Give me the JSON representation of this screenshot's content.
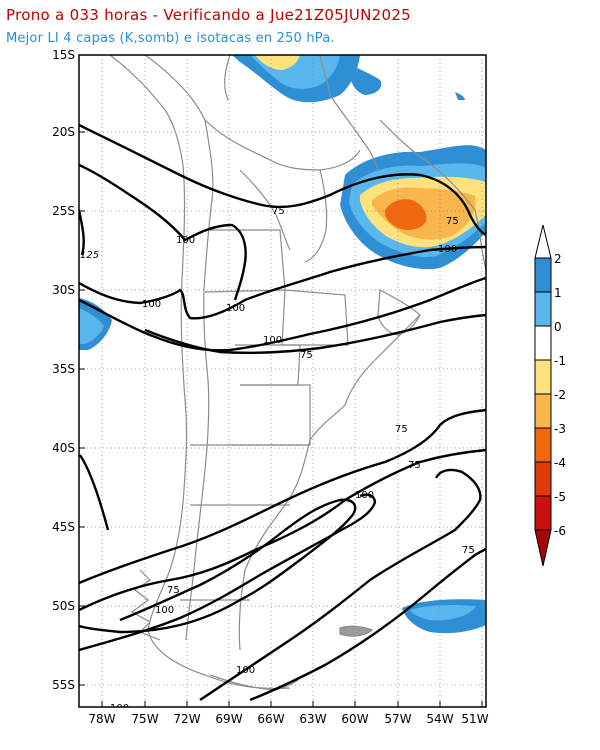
{
  "title": {
    "line1": "Prono a 033 horas - Verificando a Jue21Z05JUN2025",
    "line2": "Mejor LI 4 capas (K,somb) e isotacas en 250 hPa.",
    "line1_color": "#c00000",
    "line2_color": "#2a8fd6"
  },
  "map": {
    "lat_labels": [
      "15S",
      "20S",
      "25S",
      "30S",
      "35S",
      "40S",
      "45S",
      "50S",
      "55S"
    ],
    "lon_labels": [
      "78W",
      "75W",
      "72W",
      "69W",
      "66W",
      "63W",
      "60W",
      "57W",
      "54W",
      "51W"
    ],
    "isotach_labels": [
      "75",
      "100",
      "125",
      "100",
      "100",
      "75",
      "100",
      "75",
      "100",
      "75",
      "75",
      "100",
      "75",
      "100",
      "100",
      "100",
      "75"
    ]
  },
  "colorbar": {
    "labels": [
      "2",
      "1",
      "0",
      "-1",
      "-2",
      "-3",
      "-4",
      "-5",
      "-6"
    ],
    "colors": [
      "#2f8fd4",
      "#5ab7ee",
      "#ffffff",
      "#fde27e",
      "#f9b64c",
      "#ef6a0e",
      "#e13a0a",
      "#cc1010",
      "#a80606"
    ]
  }
}
